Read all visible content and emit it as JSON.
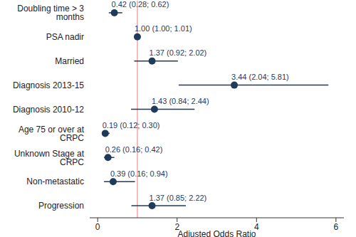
{
  "chart_data": {
    "type": "scatter",
    "orientation": "horizontal",
    "x_label": "Adjusted Odds Ratio",
    "categories": [
      "Progression",
      "Non-metastatic",
      "Unknown Stage at CRPC",
      "Age 75 or over at CRPC",
      "Diagnosis 2010-12",
      "Diagnosis 2013-15",
      "Married",
      "PSA nadir",
      "Doubling time > 3 months"
    ],
    "values": [
      1.37,
      0.39,
      0.26,
      0.19,
      1.43,
      3.44,
      1.37,
      1.0,
      0.42
    ],
    "ci_low": [
      0.85,
      0.16,
      0.16,
      0.12,
      0.84,
      2.04,
      0.92,
      1.0,
      0.28
    ],
    "ci_high": [
      2.22,
      0.94,
      0.42,
      0.3,
      2.44,
      5.81,
      2.02,
      1.01,
      0.62
    ],
    "value_labels": [
      "1.37 (0.85; 2.22)",
      "0.39 (0.16; 0.94)",
      "0.26 (0.16; 0.42)",
      "0.19 (0.12; 0.30)",
      "1.43 (0.84; 2.44)",
      "3.44 (2.04; 5.81)",
      "1.37 (0.92; 2.02)",
      "1.00 (1.00; 1.01)",
      "0.42 (0.28; 0.62)"
    ],
    "data_labels": true,
    "reference_line": {
      "value": 1,
      "color": "#f2a5a5"
    },
    "xlim": [
      -0.2,
      6.2
    ],
    "xticks": [
      0,
      2,
      4,
      6
    ],
    "color": "#1f3b5c",
    "grid": false
  }
}
